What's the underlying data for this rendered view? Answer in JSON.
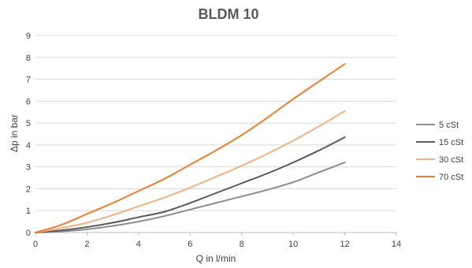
{
  "chart_data": {
    "type": "line",
    "title": "BLDM 10",
    "xlabel": "Q in l/min",
    "ylabel": "Δp in bar",
    "xlim": [
      0,
      14
    ],
    "ylim": [
      0,
      9
    ],
    "xticks": [
      "0",
      "2",
      "4",
      "6",
      "8",
      "10",
      "12",
      "14"
    ],
    "yticks": [
      "0",
      "1",
      "2",
      "3",
      "4",
      "5",
      "6",
      "7",
      "8",
      "9"
    ],
    "grid": "horizontal",
    "legend": "right",
    "series": [
      {
        "name": "5 cSt",
        "color": "#8c8c8c",
        "points": [
          [
            0,
            0
          ],
          [
            1,
            0.05
          ],
          [
            2,
            0.15
          ],
          [
            3,
            0.3
          ],
          [
            4,
            0.5
          ],
          [
            5,
            0.75
          ],
          [
            6,
            1.05
          ],
          [
            7,
            1.35
          ],
          [
            8,
            1.65
          ],
          [
            9,
            1.95
          ],
          [
            10,
            2.3
          ],
          [
            11,
            2.75
          ],
          [
            12,
            3.2
          ]
        ]
      },
      {
        "name": "15 cSt",
        "color": "#595959",
        "points": [
          [
            0,
            0
          ],
          [
            1,
            0.1
          ],
          [
            2,
            0.25
          ],
          [
            3,
            0.45
          ],
          [
            4,
            0.7
          ],
          [
            5,
            0.95
          ],
          [
            6,
            1.35
          ],
          [
            7,
            1.8
          ],
          [
            8,
            2.25
          ],
          [
            9,
            2.7
          ],
          [
            10,
            3.2
          ],
          [
            11,
            3.75
          ],
          [
            12,
            4.35
          ]
        ]
      },
      {
        "name": "30 cSt",
        "color": "#f4b183",
        "points": [
          [
            0,
            0
          ],
          [
            1,
            0.2
          ],
          [
            2,
            0.45
          ],
          [
            3,
            0.8
          ],
          [
            4,
            1.2
          ],
          [
            5,
            1.6
          ],
          [
            6,
            2.05
          ],
          [
            7,
            2.55
          ],
          [
            8,
            3.05
          ],
          [
            9,
            3.6
          ],
          [
            10,
            4.2
          ],
          [
            11,
            4.85
          ],
          [
            12,
            5.55
          ]
        ]
      },
      {
        "name": "70 cSt",
        "color": "#ed7d31",
        "points": [
          [
            0,
            0
          ],
          [
            1,
            0.35
          ],
          [
            2,
            0.85
          ],
          [
            3,
            1.35
          ],
          [
            4,
            1.9
          ],
          [
            5,
            2.45
          ],
          [
            6,
            3.1
          ],
          [
            7,
            3.75
          ],
          [
            8,
            4.45
          ],
          [
            9,
            5.25
          ],
          [
            10,
            6.1
          ],
          [
            11,
            6.9
          ],
          [
            12,
            7.7
          ]
        ]
      }
    ]
  }
}
